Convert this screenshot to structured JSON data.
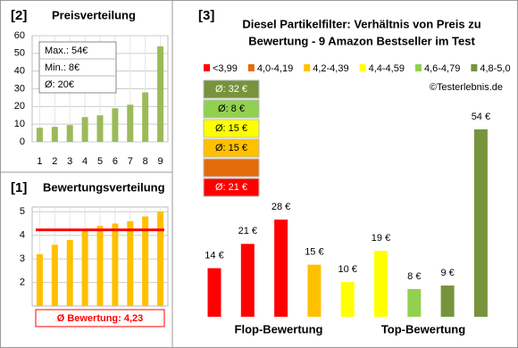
{
  "chart_data": [
    {
      "type": "bar",
      "label": "[2]",
      "title": "Preisverteilung",
      "categories": [
        "1",
        "2",
        "3",
        "4",
        "5",
        "6",
        "7",
        "8",
        "9"
      ],
      "values": [
        8,
        8.5,
        9.5,
        14,
        15,
        19,
        21,
        28,
        54
      ],
      "color": "#9bbb59",
      "ylim": [
        0,
        60
      ],
      "yticks": [
        0,
        10,
        20,
        30,
        40,
        50,
        60
      ],
      "grid": true,
      "annotations": [
        "Max.: 54€",
        "Min.: 8€",
        "Ø: 20€"
      ]
    },
    {
      "type": "bar",
      "label": "[1]",
      "title": "Bewertungsverteilung",
      "categories": [
        null,
        null,
        null,
        null,
        null,
        null,
        null,
        null,
        null
      ],
      "values": [
        3.2,
        3.6,
        3.8,
        4.2,
        4.4,
        4.5,
        4.6,
        4.8,
        5.0
      ],
      "color": "#ffc000",
      "ylim": [
        1,
        5.2
      ],
      "yticks": [
        2,
        3,
        4,
        5
      ],
      "grid": true,
      "mean": 4.23,
      "mean_color": "#ff0000",
      "mean_label": "Ø Bewertung: 4,23"
    },
    {
      "type": "bar",
      "label": "[3]",
      "title": [
        "Diesel Partikelfilter: Verhältnis von Preis zu",
        "Bewertung - 9 Amazon Bestseller im Test"
      ],
      "values": [
        14,
        21,
        28,
        15,
        10,
        19,
        8,
        9,
        54
      ],
      "value_labels": [
        "14 €",
        "21 €",
        "28 €",
        "15 €",
        "10 €",
        "19 €",
        "8 €",
        "9 €",
        "54 €"
      ],
      "colors": [
        "#ff0000",
        "#ff0000",
        "#ff0000",
        "#ffc000",
        "#ffff00",
        "#ffff00",
        "#92d050",
        "#77933c",
        "#77933c"
      ],
      "legend": [
        {
          "name": "<3,99",
          "color": "#ff0000"
        },
        {
          "name": "4,0-4,19",
          "color": "#e36c0a"
        },
        {
          "name": "4,2-4,39",
          "color": "#ffc000"
        },
        {
          "name": "4,4-4,59",
          "color": "#ffff00"
        },
        {
          "name": "4,6-4,79",
          "color": "#92d050"
        },
        {
          "name": "4,8-5,0",
          "color": "#77933c"
        }
      ],
      "averages": [
        {
          "label": "Ø: 32 €",
          "color": "#77933c"
        },
        {
          "label": "Ø: 8 €",
          "color": "#92d050"
        },
        {
          "label": "Ø: 15 €",
          "color": "#ffff00"
        },
        {
          "label": "Ø: 15 €",
          "color": "#ffc000"
        },
        {
          "label": null,
          "color": "#e36c0a"
        },
        {
          "label": "Ø: 21 €",
          "color": "#ff0000"
        }
      ],
      "groups": [
        "Flop-Bewertung",
        "Top-Bewertung"
      ],
      "credit": "©Testerlebnis.de"
    }
  ]
}
